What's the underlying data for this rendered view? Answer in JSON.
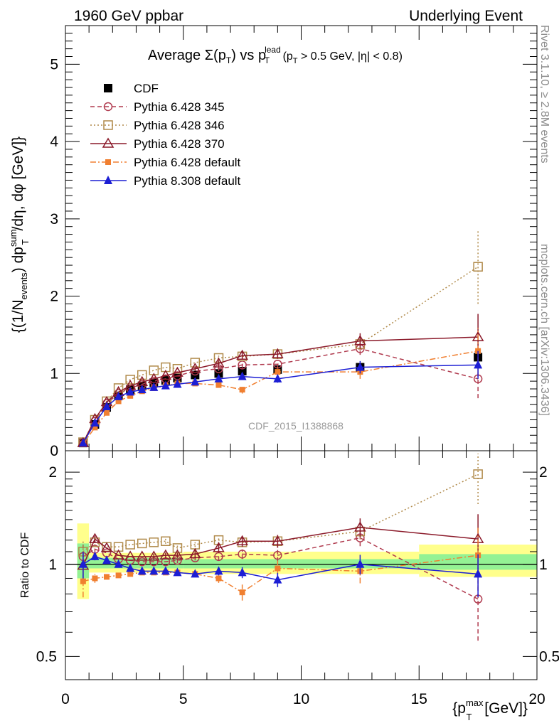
{
  "header": {
    "left": "1960 GeV ppbar",
    "right": "Underlying Event"
  },
  "side_labels": {
    "rivet": "Rivet 3.1.10, ≥ 2.8M events",
    "mcplots": "mcplots.cern.ch [arXiv:1306.3436]"
  },
  "watermark": "CDF_2015_I1388868",
  "chart_data": [
    {
      "type": "scatter",
      "title": "Average Σ(pT) vs pT lead (pT > 0.5 GeV, |η| < 0.8)",
      "title_parts": {
        "a": "Average ",
        "sigma": "Σ(p",
        "sub_T1": "T",
        "b": ") vs p",
        "sup_lead": "lead",
        "sub_T2": "T",
        "c": " (p",
        "sub_T3": "T",
        "d": " > 0.5 GeV, |η| < 0.8)"
      },
      "xlabel": "{pT max [GeV]}",
      "xlabel_parts": {
        "main": "{p",
        "sup": "max",
        "sub": "T",
        "end": " [GeV]}"
      },
      "ylabel": "{(1/Nevents) dpTsum/dη, dφ [GeV]}",
      "ylabel_parts": {
        "a": "{(1/N",
        "sub_ev": "events",
        "b": ") dp",
        "sup_sum": "sum",
        "sub_T": "T",
        "c": "/dη, dφ [GeV]}"
      },
      "xlim": [
        0,
        20
      ],
      "ylim": [
        0,
        5.5
      ],
      "y_ticks": [
        0,
        1,
        2,
        3,
        4,
        5
      ],
      "legend_position": "top-left",
      "series": [
        {
          "name": "CDF",
          "color": "#000000",
          "marker": "filled-square",
          "line": "none",
          "x": [
            0.75,
            1.25,
            1.75,
            2.25,
            2.75,
            3.25,
            3.75,
            4.25,
            4.75,
            5.5,
            6.5,
            7.5,
            9.0,
            12.5,
            17.5
          ],
          "y": [
            0.1,
            0.34,
            0.56,
            0.71,
            0.79,
            0.84,
            0.88,
            0.91,
            0.94,
            0.98,
            1.0,
            1.03,
            1.05,
            1.08,
            1.21
          ],
          "err": [
            0.01,
            0.01,
            0.01,
            0.01,
            0.01,
            0.01,
            0.01,
            0.01,
            0.01,
            0.01,
            0.01,
            0.01,
            0.02,
            0.03,
            0.05
          ]
        },
        {
          "name": "Pythia 6.428 345",
          "color": "#b03a4e",
          "marker": "open-circle",
          "line": "dashed",
          "x": [
            0.75,
            1.25,
            1.75,
            2.25,
            2.75,
            3.25,
            3.75,
            4.25,
            4.75,
            5.5,
            6.5,
            7.5,
            9.0,
            12.5,
            17.5
          ],
          "y": [
            0.11,
            0.38,
            0.61,
            0.74,
            0.81,
            0.86,
            0.9,
            0.93,
            0.97,
            1.03,
            1.06,
            1.11,
            1.12,
            1.32,
            0.93
          ],
          "err": [
            0.01,
            0.01,
            0.01,
            0.01,
            0.01,
            0.01,
            0.01,
            0.01,
            0.02,
            0.02,
            0.03,
            0.04,
            0.05,
            0.08,
            0.25
          ]
        },
        {
          "name": "Pythia 6.428 346",
          "color": "#b08a4a",
          "marker": "open-square",
          "line": "dotted",
          "x": [
            0.75,
            1.25,
            1.75,
            2.25,
            2.75,
            3.25,
            3.75,
            4.25,
            4.75,
            5.5,
            6.5,
            7.5,
            9.0,
            12.5,
            17.5
          ],
          "y": [
            0.11,
            0.4,
            0.64,
            0.81,
            0.92,
            0.98,
            1.04,
            1.08,
            1.06,
            1.14,
            1.2,
            1.22,
            1.25,
            1.38,
            2.38
          ],
          "err": [
            0.01,
            0.01,
            0.01,
            0.01,
            0.01,
            0.01,
            0.01,
            0.02,
            0.02,
            0.02,
            0.03,
            0.04,
            0.06,
            0.08,
            0.48
          ]
        },
        {
          "name": "Pythia 6.428 370",
          "color": "#8b1a2a",
          "marker": "open-triangle",
          "line": "solid",
          "x": [
            0.75,
            1.25,
            1.75,
            2.25,
            2.75,
            3.25,
            3.75,
            4.25,
            4.75,
            5.5,
            6.5,
            7.5,
            9.0,
            12.5,
            17.5
          ],
          "y": [
            0.1,
            0.41,
            0.63,
            0.76,
            0.84,
            0.89,
            0.93,
            0.97,
            1.01,
            1.06,
            1.13,
            1.23,
            1.25,
            1.42,
            1.47
          ],
          "err": [
            0.01,
            0.01,
            0.01,
            0.01,
            0.01,
            0.01,
            0.02,
            0.02,
            0.02,
            0.03,
            0.04,
            0.05,
            0.06,
            0.1,
            0.3
          ]
        },
        {
          "name": "Pythia 6.428 default",
          "color": "#f07f30",
          "marker": "filled-square-small",
          "line": "dashdot",
          "x": [
            0.75,
            1.25,
            1.75,
            2.25,
            2.75,
            3.25,
            3.75,
            4.25,
            4.75,
            5.5,
            6.5,
            7.5,
            9.0,
            12.5,
            17.5
          ],
          "y": [
            0.09,
            0.3,
            0.49,
            0.64,
            0.71,
            0.77,
            0.81,
            0.84,
            0.87,
            0.87,
            0.85,
            0.79,
            1.02,
            1.02,
            1.29
          ],
          "err": [
            0.01,
            0.01,
            0.01,
            0.01,
            0.01,
            0.01,
            0.01,
            0.01,
            0.02,
            0.02,
            0.03,
            0.05,
            0.06,
            0.09,
            0.3
          ]
        },
        {
          "name": "Pythia 8.308 default",
          "color": "#1c1ed4",
          "marker": "filled-triangle",
          "line": "solid",
          "x": [
            0.75,
            1.25,
            1.75,
            2.25,
            2.75,
            3.25,
            3.75,
            4.25,
            4.75,
            5.5,
            6.5,
            7.5,
            9.0,
            12.5,
            17.5
          ],
          "y": [
            0.1,
            0.36,
            0.57,
            0.7,
            0.76,
            0.79,
            0.82,
            0.84,
            0.86,
            0.89,
            0.93,
            0.96,
            0.93,
            1.08,
            1.11
          ],
          "err": [
            0.01,
            0.01,
            0.01,
            0.01,
            0.01,
            0.01,
            0.01,
            0.01,
            0.02,
            0.02,
            0.03,
            0.04,
            0.05,
            0.08,
            0.18
          ]
        }
      ]
    },
    {
      "type": "scatter",
      "ylabel": "Ratio to CDF",
      "xlim": [
        0,
        20
      ],
      "ylim": [
        0.42,
        2.35
      ],
      "y_ticks": [
        0.5,
        1,
        2
      ],
      "x_ticks": [
        0,
        5,
        10,
        15,
        20
      ],
      "reference_line": 1,
      "uncertainty_bands": [
        {
          "x": [
            0.5,
            1.0
          ],
          "green": [
            0.9,
            1.17
          ],
          "yellow": [
            0.77,
            1.36
          ]
        },
        {
          "x": [
            1.0,
            5.0
          ],
          "green": [
            0.97,
            1.05
          ],
          "yellow": [
            0.94,
            1.09
          ]
        },
        {
          "x": [
            5.0,
            15.0
          ],
          "green": [
            0.97,
            1.04
          ],
          "yellow": [
            0.93,
            1.1
          ]
        },
        {
          "x": [
            15.0,
            20.0
          ],
          "green": [
            0.96,
            1.08
          ],
          "yellow": [
            0.91,
            1.16
          ]
        }
      ],
      "series": [
        {
          "name": "Pythia 6.428 345",
          "x": [
            0.75,
            1.25,
            1.75,
            2.25,
            2.75,
            3.25,
            3.75,
            4.25,
            4.75,
            5.5,
            6.5,
            7.5,
            9.0,
            12.5,
            17.5
          ],
          "y": [
            1.06,
            1.12,
            1.09,
            1.04,
            1.03,
            1.02,
            1.02,
            1.02,
            1.03,
            1.05,
            1.06,
            1.08,
            1.07,
            1.22,
            0.77
          ]
        },
        {
          "name": "Pythia 6.428 346",
          "x": [
            0.75,
            1.25,
            1.75,
            2.25,
            2.75,
            3.25,
            3.75,
            4.25,
            4.75,
            5.5,
            6.5,
            7.5,
            9.0,
            12.5,
            17.5
          ],
          "y": [
            1.1,
            1.18,
            1.14,
            1.14,
            1.16,
            1.17,
            1.18,
            1.19,
            1.13,
            1.16,
            1.2,
            1.18,
            1.19,
            1.28,
            1.97
          ]
        },
        {
          "name": "Pythia 6.428 370",
          "x": [
            0.75,
            1.25,
            1.75,
            2.25,
            2.75,
            3.25,
            3.75,
            4.25,
            4.75,
            5.5,
            6.5,
            7.5,
            9.0,
            12.5,
            17.5
          ],
          "y": [
            0.99,
            1.21,
            1.13,
            1.07,
            1.06,
            1.06,
            1.06,
            1.07,
            1.07,
            1.08,
            1.13,
            1.19,
            1.19,
            1.32,
            1.21
          ]
        },
        {
          "name": "Pythia 6.428 default",
          "x": [
            0.75,
            1.25,
            1.75,
            2.25,
            2.75,
            3.25,
            3.75,
            4.25,
            4.75,
            5.5,
            6.5,
            7.5,
            9.0,
            12.5,
            17.5
          ],
          "y": [
            0.88,
            0.9,
            0.91,
            0.92,
            0.93,
            0.94,
            0.94,
            0.94,
            0.94,
            0.93,
            0.9,
            0.81,
            0.97,
            0.95,
            1.07
          ]
        },
        {
          "name": "Pythia 8.308 default",
          "x": [
            0.75,
            1.25,
            1.75,
            2.25,
            2.75,
            3.25,
            3.75,
            4.25,
            4.75,
            5.5,
            6.5,
            7.5,
            9.0,
            12.5,
            17.5
          ],
          "y": [
            1.0,
            1.06,
            1.03,
            1.0,
            0.97,
            0.95,
            0.95,
            0.95,
            0.94,
            0.93,
            0.95,
            0.94,
            0.89,
            1.0,
            0.93
          ]
        }
      ]
    }
  ]
}
